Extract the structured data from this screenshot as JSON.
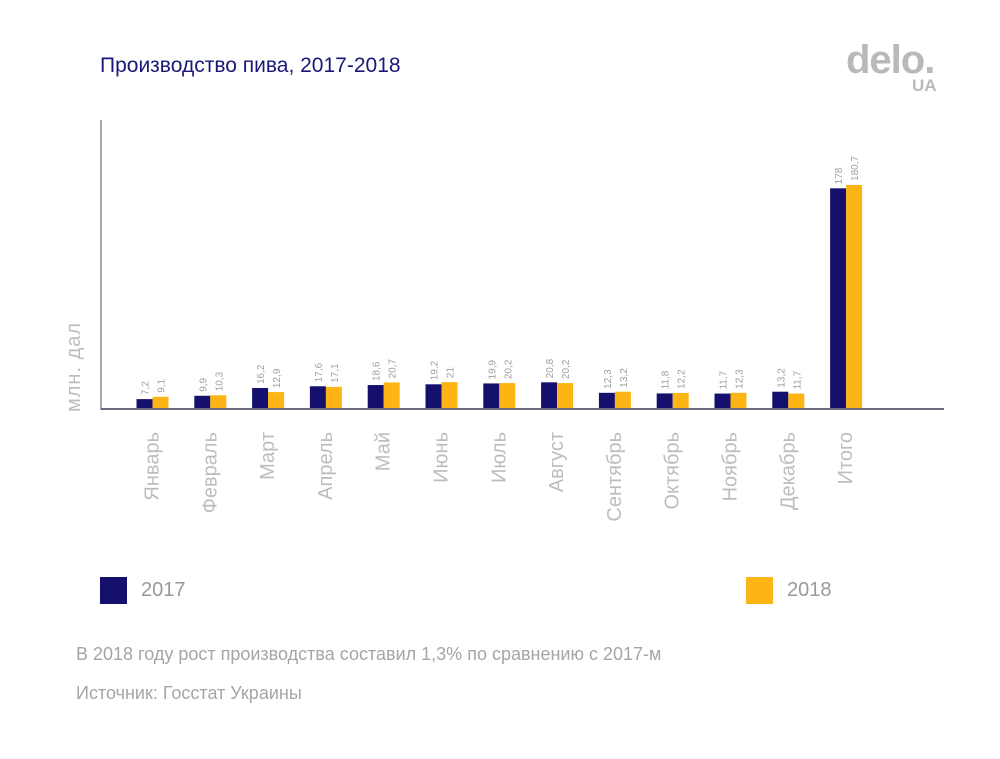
{
  "title": "Производство пива, 2017-2018",
  "logo": {
    "main": "delo.",
    "sub": "UA"
  },
  "chart_data": {
    "type": "bar",
    "title": "Производство пива, 2017-2018",
    "ylabel": "млн. дал",
    "xlabel": "",
    "ylim": [
      0,
      205
    ],
    "grid": false,
    "categories": [
      "Январь",
      "Февраль",
      "Март",
      "Апрель",
      "Май",
      "Июнь",
      "Июль",
      "Август",
      "Сентябрь",
      "Октябрь",
      "Ноябрь",
      "Декабрь",
      "Итого"
    ],
    "series": [
      {
        "name": "2017",
        "color": "#15106e",
        "values": [
          7.2,
          9.9,
          16.2,
          17.6,
          18.6,
          19.2,
          19.9,
          20.8,
          12.3,
          11.8,
          11.7,
          13.2,
          178
        ],
        "labels": [
          "7,2",
          "9,9",
          "16,2",
          "17,6",
          "18,6",
          "19,2",
          "19,9",
          "20,8",
          "12,3",
          "11,8",
          "11,7",
          "13,2",
          "178"
        ]
      },
      {
        "name": "2018",
        "color": "#fdb515",
        "values": [
          9.1,
          10.3,
          12.9,
          17.1,
          20.7,
          21,
          20.2,
          20.2,
          13.2,
          12.2,
          12.3,
          11.7,
          180.7
        ],
        "labels": [
          "9,1",
          "10,3",
          "12,9",
          "17,1",
          "20,7",
          "21",
          "20,2",
          "20,2",
          "13,2",
          "12,2",
          "12,3",
          "11,7",
          "180,7"
        ]
      }
    ],
    "legend_position": "bottom"
  },
  "legend": [
    {
      "label": "2017",
      "color": "#15106e"
    },
    {
      "label": "2018",
      "color": "#fdb515"
    }
  ],
  "note": "В 2018 году рост производства составил 1,3% по сравнению с 2017-м",
  "source": "Источник: Госстат Украины"
}
